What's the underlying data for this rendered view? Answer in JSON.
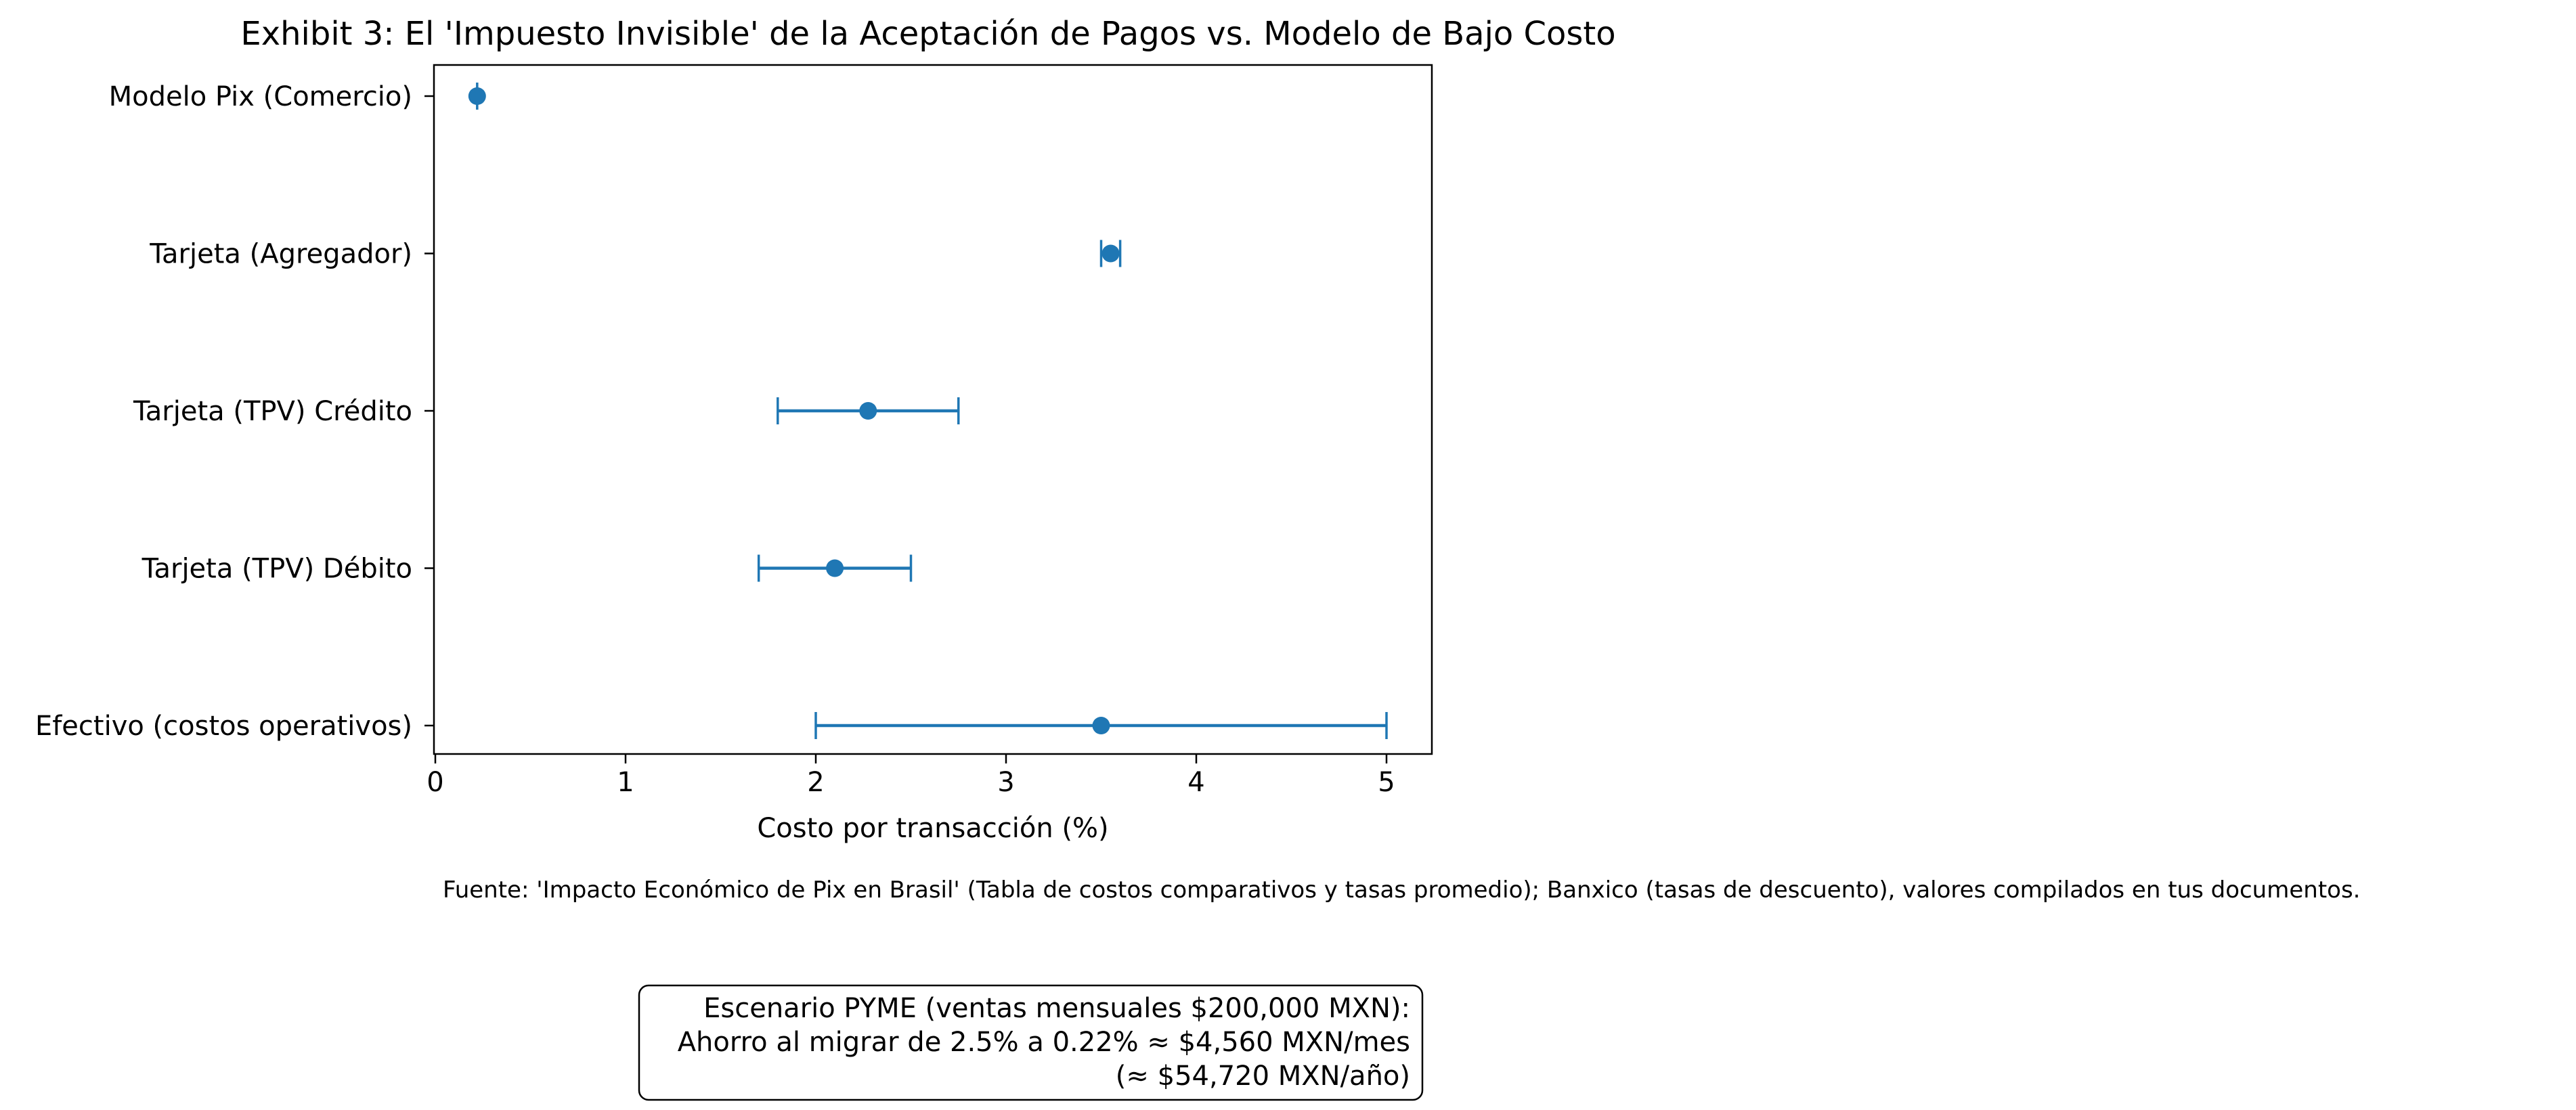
{
  "chart_data": {
    "type": "scatter",
    "title": "Exhibit 3: El 'Impuesto Invisible' de la Aceptación de Pagos vs. Modelo de Bajo Costo",
    "xlabel": "Costo por transacción (%)",
    "ylabel": "",
    "xlim": [
      0,
      5.25
    ],
    "xticks": [
      0,
      1,
      2,
      3,
      4,
      5
    ],
    "grid": false,
    "color": "#1f77b4",
    "series": [
      {
        "points": [
          {
            "category": "Modelo Pix (Comercio)",
            "value": 0.22,
            "low": 0.22,
            "high": 0.22
          },
          {
            "category": "Tarjeta (Agregador)",
            "value": 3.55,
            "low": 3.5,
            "high": 3.6
          },
          {
            "category": "Tarjeta (TPV) Crédito",
            "value": 2.275,
            "low": 1.8,
            "high": 2.75
          },
          {
            "category": "Tarjeta (TPV) Débito",
            "value": 2.1,
            "low": 1.7,
            "high": 2.5
          },
          {
            "category": "Efectivo (costos operativos)",
            "value": 3.5,
            "low": 2.0,
            "high": 5.0
          }
        ]
      }
    ]
  },
  "footnote": "Fuente: 'Impacto Económico de Pix en Brasil' (Tabla de costos comparativos y tasas promedio); Banxico (tasas de descuento), valores compilados en tus documentos.",
  "scenario_box": {
    "lines": [
      "Escenario PYME (ventas mensuales $200,000 MXN):",
      "Ahorro al migrar de 2.5% a 0.22% ≈ $4,560 MXN/mes",
      "(≈ $54,720 MXN/año)"
    ]
  }
}
